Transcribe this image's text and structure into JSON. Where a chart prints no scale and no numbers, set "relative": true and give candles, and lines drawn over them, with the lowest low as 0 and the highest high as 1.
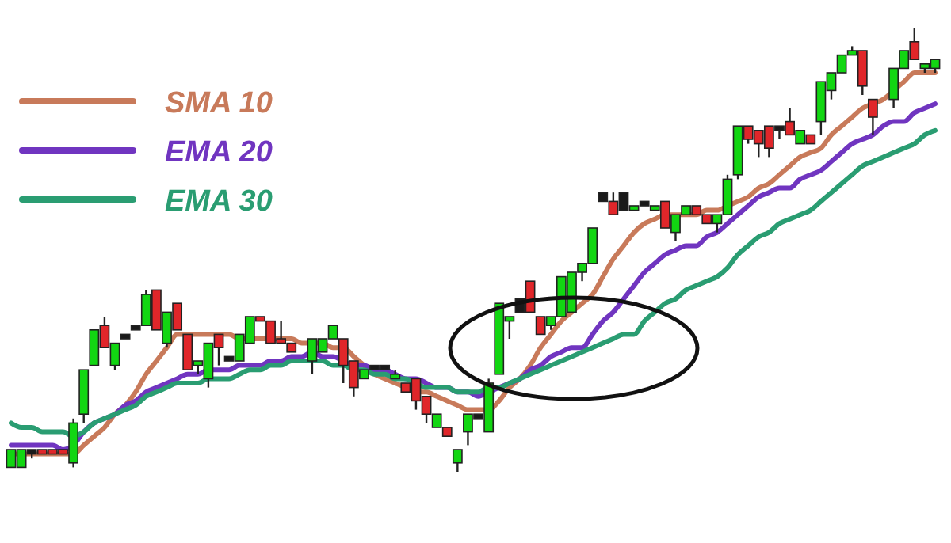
{
  "chart_data": {
    "type": "candlestick",
    "relative": true,
    "legend": "top left",
    "categories": [
      null,
      null,
      null,
      null,
      null,
      null,
      null,
      null,
      null,
      null,
      null,
      null,
      null,
      null,
      null,
      null,
      null,
      null,
      null,
      null,
      null,
      null,
      null,
      null,
      null,
      null,
      null,
      null,
      null,
      null,
      null,
      null,
      null,
      null,
      null,
      null,
      null,
      null,
      null,
      null,
      null,
      null,
      null,
      null,
      null,
      null,
      null,
      null,
      null,
      null,
      null,
      null,
      null,
      null,
      null,
      null,
      null,
      null,
      null,
      null,
      null,
      null,
      null,
      null,
      null,
      null,
      null,
      null,
      null,
      null,
      null,
      null,
      null,
      null,
      null,
      null,
      null,
      null,
      null,
      null,
      null,
      null,
      null,
      null,
      null,
      null,
      null,
      null,
      null,
      null
    ],
    "ohlc": [
      [
        0.01,
        0.05,
        0.01,
        0.05
      ],
      [
        0.01,
        0.05,
        0.01,
        0.05
      ],
      [
        0.04,
        0.05,
        0.03,
        0.05
      ],
      [
        0.05,
        0.05,
        0.04,
        0.04
      ],
      [
        0.05,
        0.05,
        0.04,
        0.04
      ],
      [
        0.05,
        0.05,
        0.04,
        0.04
      ],
      [
        0.02,
        0.12,
        0.01,
        0.11
      ],
      [
        0.13,
        0.23,
        0.11,
        0.23
      ],
      [
        0.24,
        0.32,
        0.24,
        0.32
      ],
      [
        0.33,
        0.35,
        0.28,
        0.28
      ],
      [
        0.24,
        0.29,
        0.23,
        0.29
      ],
      [
        0.31,
        0.31,
        0.3,
        0.3
      ],
      [
        0.32,
        0.33,
        0.32,
        0.33
      ],
      [
        0.33,
        0.41,
        0.33,
        0.4
      ],
      [
        0.41,
        0.41,
        0.32,
        0.32
      ],
      [
        0.29,
        0.36,
        0.28,
        0.36
      ],
      [
        0.38,
        0.38,
        0.32,
        0.32
      ],
      [
        0.31,
        0.31,
        0.23,
        0.23
      ],
      [
        0.24,
        0.25,
        0.22,
        0.25
      ],
      [
        0.21,
        0.29,
        0.19,
        0.29
      ],
      [
        0.31,
        0.31,
        0.24,
        0.28
      ],
      [
        0.26,
        0.26,
        0.25,
        0.25
      ],
      [
        0.25,
        0.31,
        0.25,
        0.31
      ],
      [
        0.29,
        0.35,
        0.29,
        0.35
      ],
      [
        0.35,
        0.35,
        0.34,
        0.34
      ],
      [
        0.34,
        0.34,
        0.29,
        0.29
      ],
      [
        0.3,
        0.34,
        0.29,
        0.29
      ],
      [
        0.29,
        0.29,
        0.27,
        0.27
      ],
      null,
      [
        0.25,
        0.3,
        0.22,
        0.3
      ],
      [
        0.27,
        0.3,
        0.27,
        0.3
      ],
      [
        0.3,
        0.33,
        0.3,
        0.33
      ],
      [
        0.3,
        0.3,
        0.2,
        0.24
      ],
      [
        0.25,
        0.25,
        0.17,
        0.19
      ],
      [
        0.21,
        0.23,
        0.21,
        0.23
      ],
      [
        0.24,
        0.24,
        0.23,
        0.23
      ],
      [
        0.24,
        0.24,
        0.23,
        0.23
      ],
      [
        0.21,
        0.23,
        0.21,
        0.22
      ],
      [
        0.2,
        0.2,
        0.18,
        0.18
      ],
      [
        0.21,
        0.21,
        0.14,
        0.16
      ],
      [
        0.17,
        0.17,
        0.11,
        0.13
      ],
      [
        0.1,
        0.13,
        0.1,
        0.13
      ],
      [
        0.1,
        0.1,
        0.08,
        0.08
      ],
      [
        0.02,
        0.05,
        0,
        0.05
      ],
      [
        0.09,
        0.13,
        0.06,
        0.13
      ],
      [
        0.12,
        0.13,
        0.12,
        0.13
      ],
      [
        0.09,
        0.21,
        0.09,
        0.2
      ],
      [
        0.22,
        0.38,
        0.22,
        0.38
      ],
      [
        0.34,
        0.35,
        0.3,
        0.35
      ],
      [
        0.36,
        0.39,
        0.36,
        0.39
      ],
      [
        0.43,
        0.43,
        0.36,
        0.36
      ],
      [
        0.35,
        0.35,
        0.31,
        0.31
      ],
      [
        0.33,
        0.35,
        0.32,
        0.35
      ],
      [
        0.35,
        0.44,
        0.35,
        0.44
      ],
      [
        0.36,
        0.45,
        0.36,
        0.45
      ],
      [
        0.45,
        0.47,
        0.43,
        0.47
      ],
      [
        0.47,
        0.55,
        0.47,
        0.55
      ],
      [
        0.61,
        0.63,
        0.61,
        0.63
      ],
      [
        0.61,
        0.63,
        0.58,
        0.58
      ],
      [
        0.59,
        0.63,
        0.59,
        0.63
      ],
      [
        0.59,
        0.6,
        0.59,
        0.6
      ],
      [
        0.61,
        0.61,
        0.6,
        0.6
      ],
      [
        0.59,
        0.6,
        0.59,
        0.6
      ],
      [
        0.61,
        0.61,
        0.55,
        0.55
      ],
      [
        0.54,
        0.58,
        0.52,
        0.58
      ],
      [
        0.58,
        0.6,
        0.58,
        0.6
      ],
      [
        0.6,
        0.6,
        0.58,
        0.58
      ],
      [
        0.58,
        0.58,
        0.56,
        0.56
      ],
      [
        0.56,
        0.58,
        0.54,
        0.58
      ],
      [
        0.58,
        0.67,
        0.58,
        0.66
      ],
      [
        0.67,
        0.78,
        0.66,
        0.78
      ],
      [
        0.78,
        0.78,
        0.74,
        0.75
      ],
      [
        0.77,
        0.77,
        0.71,
        0.74
      ],
      [
        0.78,
        0.78,
        0.71,
        0.73
      ],
      [
        0.77,
        0.78,
        0.75,
        0.78
      ],
      [
        0.79,
        0.82,
        0.76,
        0.76
      ],
      [
        0.74,
        0.77,
        0.74,
        0.77
      ],
      [
        0.76,
        0.76,
        0.74,
        0.74
      ],
      [
        0.79,
        0.88,
        0.76,
        0.88
      ],
      [
        0.86,
        0.9,
        0.84,
        0.9
      ],
      [
        0.9,
        0.94,
        0.9,
        0.94
      ],
      [
        0.94,
        0.96,
        0.94,
        0.95
      ],
      [
        0.95,
        0.95,
        0.85,
        0.87
      ],
      [
        0.84,
        0.84,
        0.76,
        0.8
      ],
      null,
      [
        0.84,
        0.91,
        0.82,
        0.91
      ],
      [
        0.91,
        0.95,
        0.91,
        0.95
      ],
      [
        0.97,
        1,
        0.93,
        0.93
      ],
      [
        0.91,
        0.92,
        0.9,
        0.92
      ],
      [
        0.91,
        0.93,
        0.9,
        0.93
      ]
    ],
    "colors": [
      "#12d612",
      "#12d612",
      "#1a1a1a",
      "#e0262a",
      "#e0262a",
      "#e0262a",
      "#12d612",
      "#12d612",
      "#12d612",
      "#e0262a",
      "#12d612",
      "#1a1a1a",
      "#1a1a1a",
      "#12d612",
      "#e0262a",
      "#12d612",
      "#e0262a",
      "#e0262a",
      "#12d612",
      "#12d612",
      "#e0262a",
      "#1a1a1a",
      "#12d612",
      "#12d612",
      "#e0262a",
      "#e0262a",
      "#e0262a",
      "#e0262a",
      null,
      "#12d612",
      "#12d612",
      "#12d612",
      "#e0262a",
      "#e0262a",
      "#12d612",
      "#1a1a1a",
      "#1a1a1a",
      "#12d612",
      "#e0262a",
      "#e0262a",
      "#e0262a",
      "#12d612",
      "#e0262a",
      "#12d612",
      "#12d612",
      "#1a1a1a",
      "#12d612",
      "#12d612",
      "#12d612",
      "#1a1a1a",
      "#e0262a",
      "#e0262a",
      "#12d612",
      "#12d612",
      "#12d612",
      "#12d612",
      "#12d612",
      "#1a1a1a",
      "#e0262a",
      "#1a1a1a",
      "#12d612",
      "#1a1a1a",
      "#12d612",
      "#e0262a",
      "#12d612",
      "#12d612",
      "#e0262a",
      "#e0262a",
      "#12d612",
      "#12d612",
      "#12d612",
      "#e0262a",
      "#e0262a",
      "#e0262a",
      "#1a1a1a",
      "#e0262a",
      "#12d612",
      "#e0262a",
      "#12d612",
      "#12d612",
      "#12d612",
      "#12d612",
      "#e0262a",
      "#e0262a",
      null,
      "#12d612",
      "#12d612",
      "#e0262a",
      "#12d612",
      "#12d612"
    ],
    "series": [
      {
        "type": "line",
        "name": "SMA 10",
        "color": "#c87a5a",
        "values": [
          0.04,
          0.04,
          0.04,
          0.04,
          0.04,
          0.04,
          0.04,
          0.06,
          0.08,
          0.1,
          0.13,
          0.15,
          0.18,
          0.22,
          0.25,
          0.28,
          0.31,
          0.31,
          0.31,
          0.31,
          0.31,
          0.31,
          0.3,
          0.3,
          0.3,
          0.3,
          0.3,
          0.3,
          0.29,
          0.29,
          0.29,
          0.28,
          0.28,
          0.26,
          0.24,
          0.22,
          0.21,
          0.2,
          0.19,
          0.18,
          0.18,
          0.17,
          0.16,
          0.15,
          0.14,
          0.14,
          0.14,
          0.16,
          0.19,
          0.21,
          0.24,
          0.28,
          0.31,
          0.34,
          0.36,
          0.38,
          0.4,
          0.44,
          0.48,
          0.51,
          0.54,
          0.56,
          0.57,
          0.58,
          0.58,
          0.58,
          0.58,
          0.59,
          0.59,
          0.6,
          0.61,
          0.62,
          0.64,
          0.65,
          0.67,
          0.69,
          0.71,
          0.72,
          0.73,
          0.76,
          0.78,
          0.8,
          0.82,
          0.83,
          0.84,
          0.86,
          0.88,
          0.9,
          0.9,
          0.9
        ]
      },
      {
        "type": "line",
        "name": "EMA 20",
        "color": "#7035c0",
        "values": [
          0.06,
          0.06,
          0.06,
          0.06,
          0.06,
          0.05,
          0.06,
          0.09,
          0.11,
          0.12,
          0.13,
          0.15,
          0.16,
          0.18,
          0.19,
          0.2,
          0.21,
          0.22,
          0.22,
          0.23,
          0.23,
          0.23,
          0.24,
          0.24,
          0.24,
          0.25,
          0.25,
          0.26,
          0.26,
          0.27,
          0.26,
          0.26,
          0.25,
          0.24,
          0.24,
          0.23,
          0.23,
          0.22,
          0.21,
          0.21,
          0.2,
          0.19,
          0.19,
          0.18,
          0.18,
          0.17,
          0.18,
          0.19,
          0.2,
          0.21,
          0.23,
          0.24,
          0.26,
          0.27,
          0.28,
          0.28,
          0.31,
          0.34,
          0.36,
          0.39,
          0.42,
          0.45,
          0.47,
          0.49,
          0.5,
          0.51,
          0.51,
          0.53,
          0.54,
          0.56,
          0.58,
          0.6,
          0.62,
          0.63,
          0.64,
          0.64,
          0.66,
          0.67,
          0.68,
          0.7,
          0.72,
          0.74,
          0.75,
          0.76,
          0.78,
          0.79,
          0.79,
          0.81,
          0.82,
          0.83
        ]
      },
      {
        "type": "line",
        "name": "EMA 30",
        "color": "#2a9d72",
        "values": [
          0.11,
          0.1,
          0.1,
          0.09,
          0.09,
          0.09,
          0.08,
          0.09,
          0.11,
          0.12,
          0.13,
          0.14,
          0.15,
          0.17,
          0.18,
          0.19,
          0.2,
          0.2,
          0.2,
          0.21,
          0.21,
          0.21,
          0.22,
          0.23,
          0.23,
          0.24,
          0.24,
          0.25,
          0.25,
          0.25,
          0.25,
          0.24,
          0.24,
          0.23,
          0.23,
          0.22,
          0.22,
          0.21,
          0.21,
          0.2,
          0.19,
          0.19,
          0.19,
          0.18,
          0.18,
          0.18,
          0.19,
          0.19,
          0.2,
          0.21,
          0.22,
          0.23,
          0.24,
          0.25,
          0.26,
          0.27,
          0.28,
          0.29,
          0.3,
          0.31,
          0.31,
          0.34,
          0.36,
          0.38,
          0.39,
          0.41,
          0.42,
          0.43,
          0.44,
          0.46,
          0.49,
          0.51,
          0.53,
          0.54,
          0.56,
          0.57,
          0.58,
          0.59,
          0.61,
          0.63,
          0.65,
          0.67,
          0.69,
          0.7,
          0.71,
          0.72,
          0.73,
          0.74,
          0.76,
          0.77
        ]
      }
    ]
  }
}
